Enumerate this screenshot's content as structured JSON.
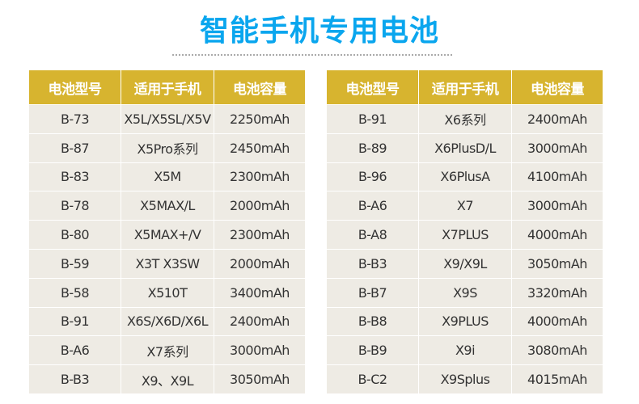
{
  "title": "智能手机专用电池",
  "headers": [
    "电池型号",
    "适用于手机",
    "电池容量"
  ],
  "left_table": [
    [
      "B-73",
      "X5L/X5SL/X5V",
      "2250mAh"
    ],
    [
      "B-87",
      "X5Pro系列",
      "2450mAh"
    ],
    [
      "B-83",
      "X5M",
      "2300mAh"
    ],
    [
      "B-78",
      "X5MAX/L",
      "2000mAh"
    ],
    [
      "B-80",
      "X5MAX+/V",
      "2300mAh"
    ],
    [
      "B-59",
      "X3T X3SW",
      "2000mAh"
    ],
    [
      "B-58",
      "X510T",
      "3400mAh"
    ],
    [
      "B-91",
      "X6S/X6D/X6L",
      "2400mAh"
    ],
    [
      "B-A6",
      "X7系列",
      "3000mAh"
    ],
    [
      "B-B3",
      "X9、X9L",
      "3050mAh"
    ]
  ],
  "right_table": [
    [
      "B-91",
      "X6系列",
      "2400mAh"
    ],
    [
      "B-89",
      "X6PlusD/L",
      "3000mAh"
    ],
    [
      "B-96",
      "X6PlusA",
      "4100mAh"
    ],
    [
      "B-A6",
      "X7",
      "3000mAh"
    ],
    [
      "B-A8",
      "X7PLUS",
      "4000mAh"
    ],
    [
      "B-B3",
      "X9/X9L",
      "3050mAh"
    ],
    [
      "B-B7",
      "X9S",
      "3320mAh"
    ],
    [
      "B-B8",
      "X9PLUS",
      "4000mAh"
    ],
    [
      "B-B9",
      "X9i",
      "3080mAh"
    ],
    [
      "B-C2",
      "X9Splus",
      "4015mAh"
    ]
  ],
  "colors": {
    "title": "#0aa6ee",
    "header_bg": "#d7b42f",
    "row_bg": "#eeebe4"
  }
}
